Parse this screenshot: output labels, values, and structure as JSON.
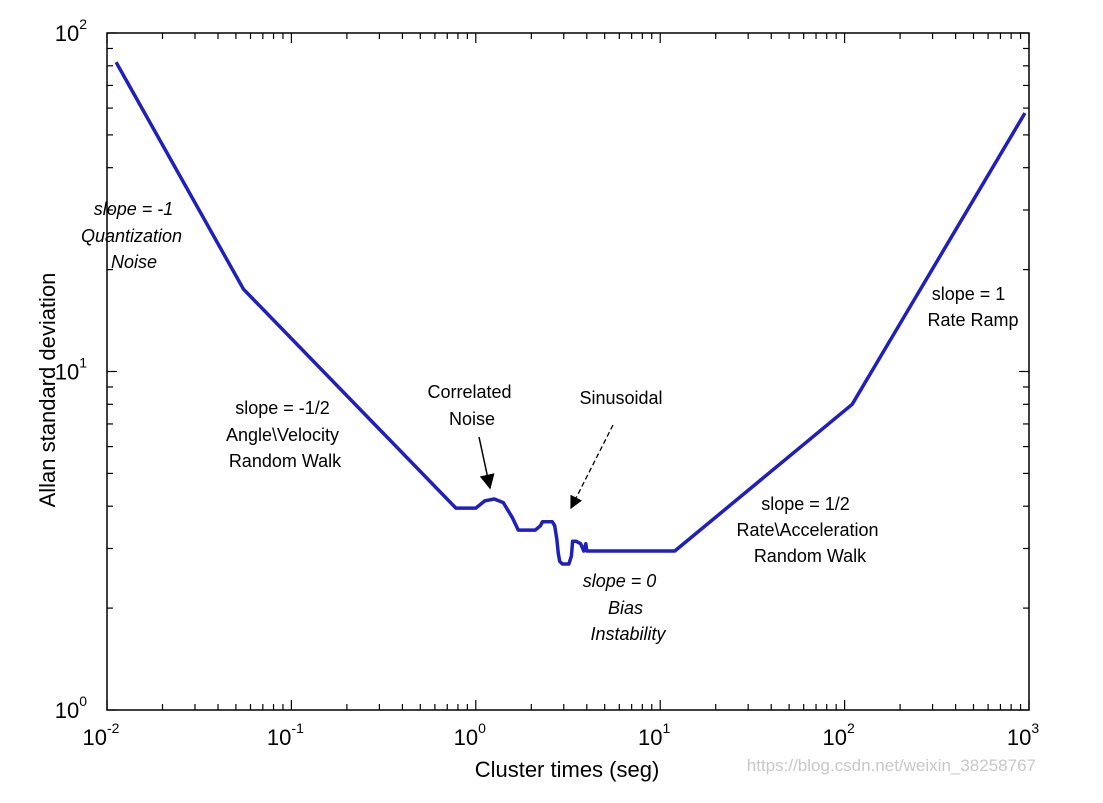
{
  "chart_data": {
    "type": "line",
    "title": "",
    "xlabel": "Cluster times (seg)",
    "ylabel": "Allan standard deviation",
    "xscale": "log",
    "yscale": "log",
    "xlim": [
      0.01,
      1000
    ],
    "ylim": [
      1,
      100
    ],
    "grid": false,
    "x_ticks": [
      {
        "base": "10",
        "exp": "-2"
      },
      {
        "base": "10",
        "exp": "-1"
      },
      {
        "base": "10",
        "exp": "0"
      },
      {
        "base": "10",
        "exp": "1"
      },
      {
        "base": "10",
        "exp": "2"
      },
      {
        "base": "10",
        "exp": "3"
      }
    ],
    "y_ticks": [
      {
        "base": "10",
        "exp": "0"
      },
      {
        "base": "10",
        "exp": "1"
      },
      {
        "base": "10",
        "exp": "2"
      }
    ],
    "series": [
      {
        "color": "#1f1fbf",
        "x": [
          0.0112,
          0.055,
          0.78,
          1.0,
          1.12,
          1.26,
          1.41,
          1.58,
          1.7,
          2.1,
          2.24,
          2.3,
          2.4,
          2.6,
          2.68,
          2.75,
          2.8,
          2.85,
          2.95,
          3.2,
          3.3,
          3.35,
          3.5,
          3.7,
          3.85,
          3.95,
          4.0,
          4.1,
          12.0,
          110.0,
          950.0
        ],
        "y": [
          82,
          17.5,
          3.95,
          3.95,
          4.15,
          4.2,
          4.1,
          3.7,
          3.4,
          3.4,
          3.5,
          3.6,
          3.6,
          3.6,
          3.5,
          3.2,
          2.9,
          2.75,
          2.7,
          2.7,
          2.85,
          3.15,
          3.15,
          3.1,
          2.95,
          3.1,
          2.95,
          2.95,
          2.95,
          8.0,
          58
        ]
      }
    ],
    "annotations": [
      {
        "lines": [
          "slope = -1",
          "Quantization",
          "Noise"
        ],
        "italic": true
      },
      {
        "lines": [
          "slope = -1/2",
          "Angle\\Velocity",
          "Random Walk"
        ],
        "italic": false
      },
      {
        "lines": [
          "Correlated",
          "Noise"
        ],
        "italic": false
      },
      {
        "lines": [
          "Sinusoidal"
        ],
        "italic": false
      },
      {
        "lines": [
          "slope = 0",
          "Bias",
          "Instability"
        ],
        "italic": true
      },
      {
        "lines": [
          "slope = 1/2",
          "Rate\\Acceleration",
          "Random Walk"
        ],
        "italic": false
      },
      {
        "lines": [
          "slope = 1",
          "Rate  Ramp"
        ],
        "italic": false
      }
    ]
  },
  "watermark": "https://blog.csdn.net/weixin_38258767"
}
